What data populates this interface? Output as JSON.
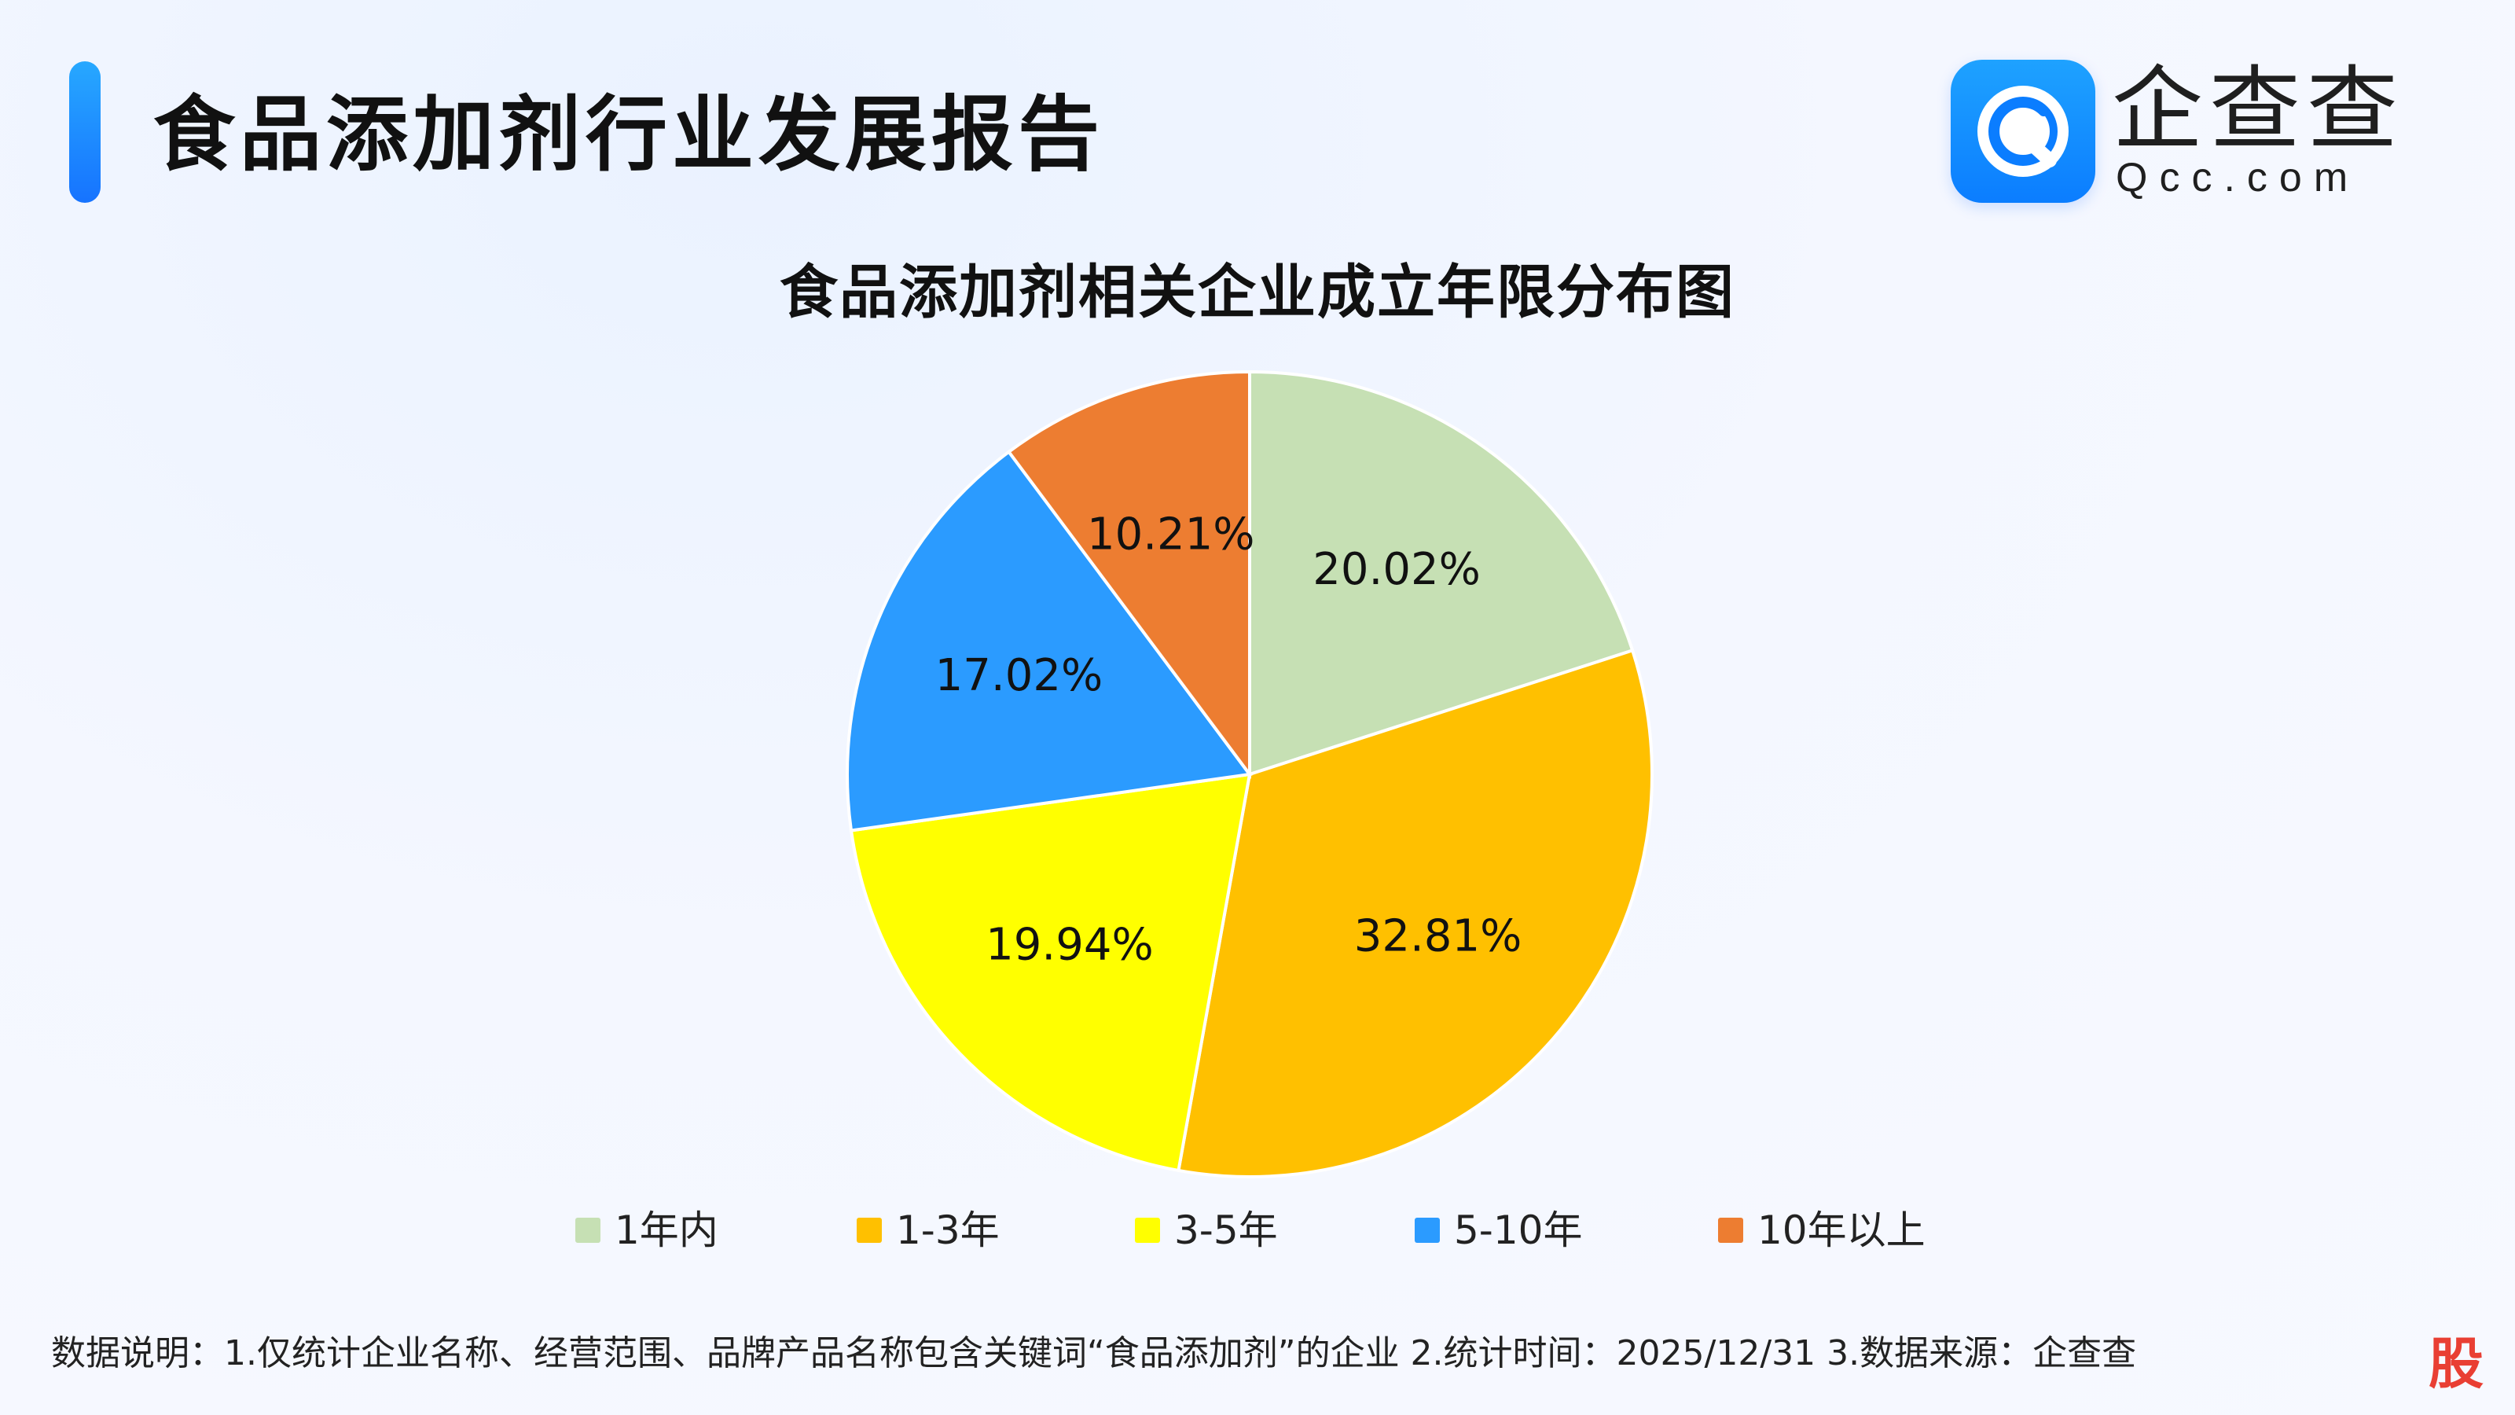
{
  "header": {
    "title": "食品添加剂行业发展报告"
  },
  "logo": {
    "cn": "企查查",
    "en": "Qcc.com"
  },
  "chart_data": {
    "type": "pie",
    "title": "食品添加剂相关企业成立年限分布图",
    "legend_position": "bottom",
    "series": [
      {
        "name": "1年内",
        "value": 20.02,
        "label": "20.02%",
        "color": "#c6e0b4"
      },
      {
        "name": "1-3年",
        "value": 32.81,
        "label": "32.81%",
        "color": "#ffc000"
      },
      {
        "name": "3-5年",
        "value": 19.94,
        "label": "19.94%",
        "color": "#ffff00"
      },
      {
        "name": "5-10年",
        "value": 17.02,
        "label": "17.02%",
        "color": "#2b9bff"
      },
      {
        "name": "10年以上",
        "value": 10.21,
        "label": "10.21%",
        "color": "#ed7d31"
      }
    ]
  },
  "footer": {
    "note": "数据说明：1.仅统计企业名称、经营范围、品牌产品名称包含关键词“食品添加剂”的企业  2.统计时间：2025/12/31  3.数据来源：企查查",
    "corner": "股"
  }
}
